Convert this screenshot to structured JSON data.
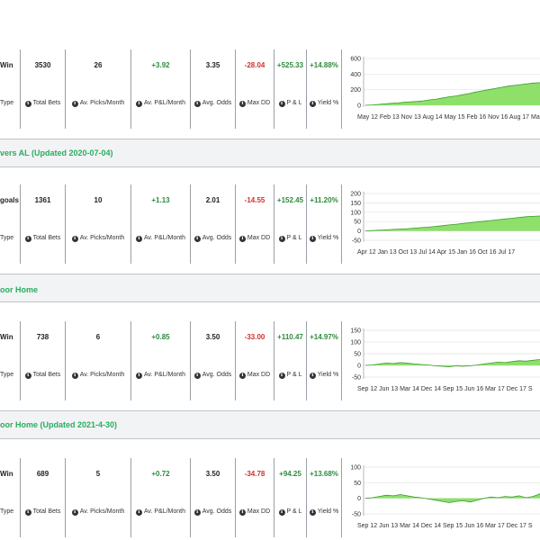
{
  "labels": {
    "type": "Type",
    "total_bets": "Total Bets",
    "picks_month": "Av. Picks/Month",
    "pl_month": "Av. P&L/Month",
    "avg_odds": "Avg. Odds",
    "max_dd": "Max DD",
    "pl": "P & L",
    "yield": "Yield %"
  },
  "sections": [
    {
      "title": "",
      "type_value": "Win",
      "total_bets": "3530",
      "picks_month": "26",
      "pl_month": "+3.92",
      "avg_odds": "3.35",
      "max_dd": "-28.04",
      "pl": "+525.33",
      "yield": "+14.88%",
      "y_ticks": [
        "600",
        "400",
        "200",
        "0"
      ],
      "x_labels": "May 12 Feb 13 Nov 13 Aug 14 May 15 Feb 16 Nov 16 Aug 17 Ma",
      "chart_values": [
        0,
        5,
        12,
        18,
        25,
        30,
        38,
        45,
        50,
        58,
        70,
        80,
        95,
        110,
        120,
        135,
        150,
        170,
        185,
        200,
        215,
        230,
        245,
        255,
        265,
        275,
        285,
        290
      ]
    },
    {
      "title": "vers AL (Updated 2020-07-04)",
      "type_value": "goals",
      "total_bets": "1361",
      "picks_month": "10",
      "pl_month": "+1.13",
      "avg_odds": "2.01",
      "max_dd": "-14.55",
      "pl": "+152.45",
      "yield": "+11.20%",
      "y_ticks": [
        "200",
        "150",
        "100",
        "50",
        "0",
        "-50"
      ],
      "x_labels": "Apr 12 Jan 13 Oct 13 Jul 14 Apr 15 Jan 16 Oct 16 Jul 17",
      "chart_values": [
        0,
        2,
        4,
        6,
        8,
        10,
        12,
        15,
        18,
        20,
        24,
        28,
        32,
        36,
        40,
        44,
        48,
        52,
        56,
        60,
        64,
        68,
        72,
        76,
        78,
        80
      ]
    },
    {
      "title": "oor Home",
      "type_value": "Win",
      "total_bets": "738",
      "picks_month": "6",
      "pl_month": "+0.85",
      "avg_odds": "3.50",
      "max_dd": "-33.00",
      "pl": "+110.47",
      "yield": "+14.97%",
      "y_ticks": [
        "150",
        "100",
        "50",
        "0",
        "-50"
      ],
      "x_labels": "Sep 12 Jun 13 Mar 14 Dec 14 Sep 15 Jun 16 Mar 17 Dec 17 S",
      "chart_values": [
        0,
        2,
        6,
        10,
        8,
        12,
        10,
        6,
        4,
        2,
        -2,
        -4,
        -6,
        -2,
        -4,
        -2,
        2,
        6,
        10,
        14,
        12,
        16,
        20,
        18,
        22,
        25
      ]
    },
    {
      "title": "oor Home (Updated 2021-4-30)",
      "type_value": "Win",
      "total_bets": "689",
      "picks_month": "5",
      "pl_month": "+0.72",
      "avg_odds": "3.50",
      "max_dd": "-34.78",
      "pl": "+94.25",
      "yield": "+13.68%",
      "y_ticks": [
        "100",
        "50",
        "0",
        "-50"
      ],
      "x_labels": "Sep 12 Jun 13 Mar 14 Dec 14 Sep 15 Jun 16 Mar 17 Dec 17 S",
      "chart_values": [
        0,
        2,
        6,
        10,
        8,
        12,
        8,
        4,
        2,
        -2,
        -6,
        -10,
        -14,
        -10,
        -8,
        -12,
        -6,
        0,
        4,
        2,
        6,
        4,
        8,
        2,
        6,
        14
      ]
    }
  ],
  "colors": {
    "accent": "#27ae60",
    "positive": "#2e8b3d",
    "negative": "#d32f2f",
    "area_fill": "#8ee06b",
    "area_stroke": "#3a9b2c"
  }
}
